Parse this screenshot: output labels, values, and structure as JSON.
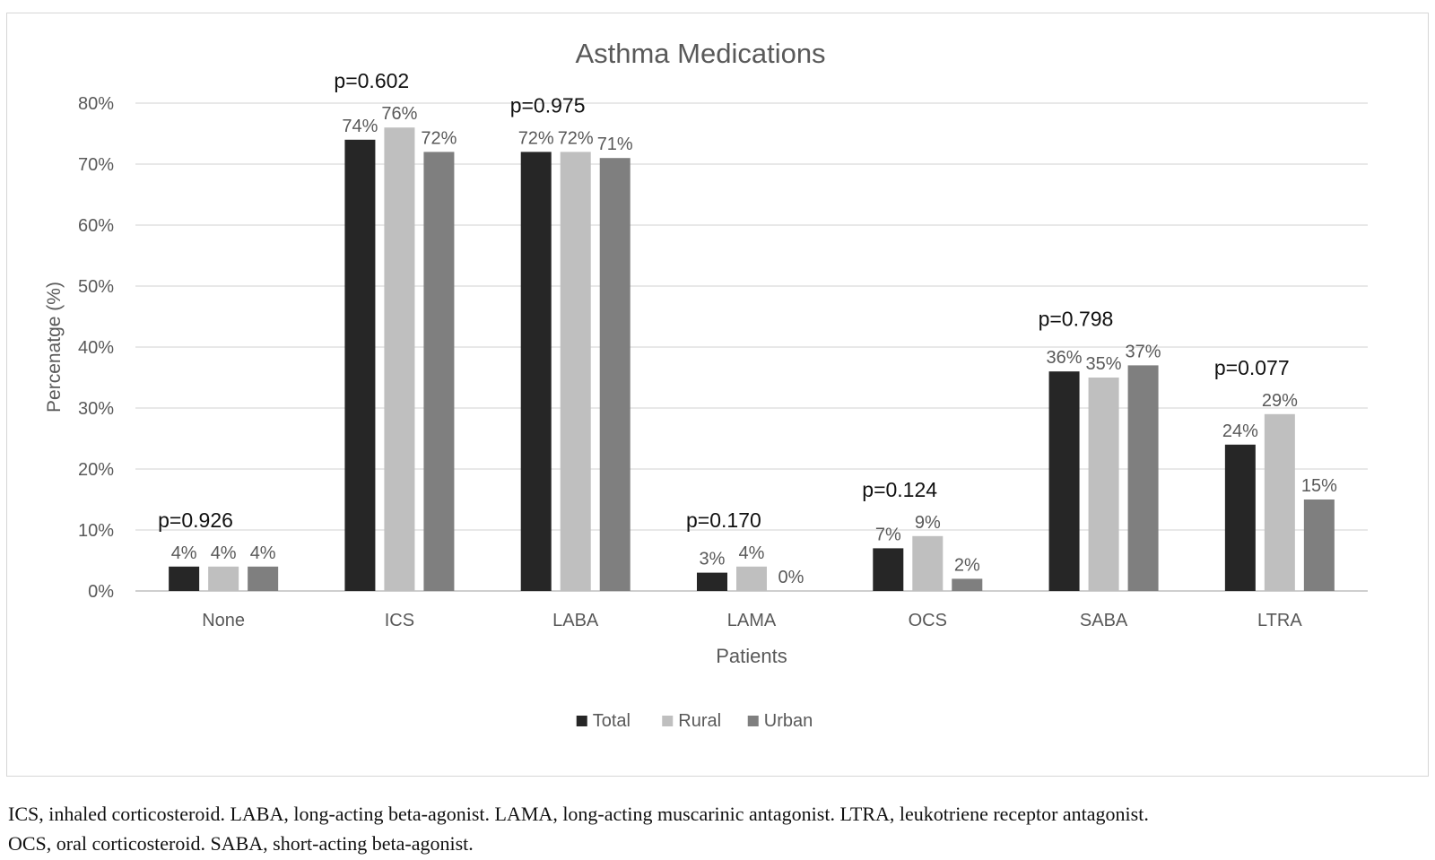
{
  "chart_data": {
    "type": "bar",
    "title": "Asthma Medications",
    "xlabel": "Patients",
    "ylabel": "Percenatge (%)",
    "ylim": [
      0,
      80
    ],
    "yticks": [
      0,
      10,
      20,
      30,
      40,
      50,
      60,
      70,
      80
    ],
    "ytick_labels": [
      "0%",
      "10%",
      "20%",
      "30%",
      "40%",
      "50%",
      "60%",
      "70%",
      "80%"
    ],
    "grid": true,
    "legend_position": "bottom",
    "categories": [
      "None",
      "ICS",
      "LABA",
      "LAMA",
      "OCS",
      "SABA",
      "LTRA"
    ],
    "series": [
      {
        "name": "Total",
        "color": "#262626",
        "values": [
          4,
          74,
          72,
          3,
          7,
          36,
          24
        ],
        "labels": [
          "4%",
          "74%",
          "72%",
          "3%",
          "7%",
          "36%",
          "24%"
        ]
      },
      {
        "name": "Rural",
        "color": "#bfbfbf",
        "values": [
          4,
          76,
          72,
          4,
          9,
          35,
          29
        ],
        "labels": [
          "4%",
          "76%",
          "72%",
          "4%",
          "9%",
          "35%",
          "29%"
        ]
      },
      {
        "name": "Urban",
        "color": "#7f7f7f",
        "values": [
          4,
          72,
          71,
          0,
          2,
          37,
          15
        ],
        "labels": [
          "4%",
          "72%",
          "71%",
          "0%",
          "2%",
          "37%",
          "15%"
        ]
      }
    ],
    "annotations": [
      "p=0.926",
      "p=0.602",
      "p=0.975",
      "p=0.170",
      "p=0.124",
      "p=0.798",
      "p=0.077"
    ]
  },
  "caption": {
    "line1": "ICS, inhaled corticosteroid. LABA, long-acting beta-agonist. LAMA, long-acting muscarinic antagonist. LTRA, leukotriene receptor antagonist.",
    "line2": "OCS, oral corticosteroid. SABA, short-acting beta-agonist."
  }
}
